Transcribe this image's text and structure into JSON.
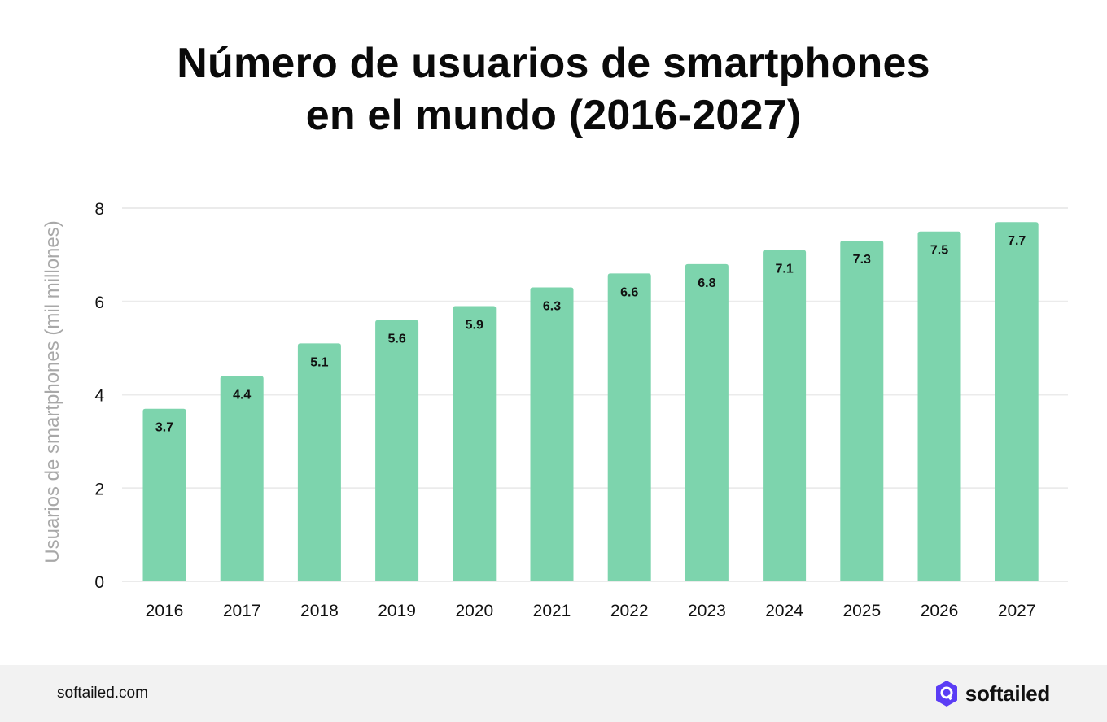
{
  "title_line1": "Número de usuarios de smartphones",
  "title_line2": "en el mundo (2016-2027)",
  "footer": {
    "url": "softailed.com",
    "brand_name": "softailed",
    "brand_color": "#5b3df5"
  },
  "chart_data": {
    "type": "bar",
    "categories": [
      "2016",
      "2017",
      "2018",
      "2019",
      "2020",
      "2021",
      "2022",
      "2023",
      "2024",
      "2025",
      "2026",
      "2027"
    ],
    "values": [
      3.7,
      4.4,
      5.1,
      5.6,
      5.9,
      6.3,
      6.6,
      6.8,
      7.1,
      7.3,
      7.5,
      7.7
    ],
    "value_labels": [
      "3.7",
      "4.4",
      "5.1",
      "5.6",
      "5.9",
      "6.3",
      "6.6",
      "6.8",
      "7.1",
      "7.3",
      "7.5",
      "7.7"
    ],
    "title": "Número de usuarios de smartphones en el mundo (2016-2027)",
    "xlabel": "",
    "ylabel": "Usuarios de smartphones (mil millones)",
    "ylim": [
      0,
      8
    ],
    "yticks": [
      0,
      2,
      4,
      6,
      8
    ],
    "ytick_labels": [
      "0",
      "2",
      "4",
      "6",
      "8"
    ],
    "grid": true,
    "bar_color": "#7dd4ad",
    "grid_color": "#ebebeb"
  }
}
